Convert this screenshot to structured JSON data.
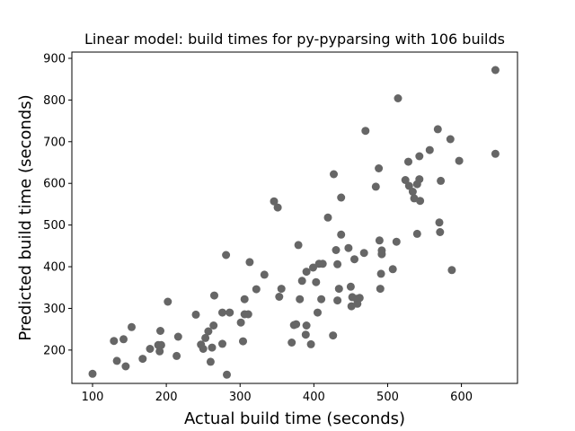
{
  "chart_data": {
    "type": "scatter",
    "title": "Linear model: build times for py-pyparsing with 106 builds",
    "xlabel": "Actual build time (seconds)",
    "ylabel": "Predicted build time (seconds)",
    "xlim": [
      72,
      676
    ],
    "ylim": [
      120,
      915
    ],
    "xticks": [
      100,
      200,
      300,
      400,
      500,
      600
    ],
    "yticks": [
      200,
      300,
      400,
      500,
      600,
      700,
      800,
      900
    ],
    "grid": false,
    "marker_color": "#666666",
    "series": [
      {
        "points": [
          [
            100,
            143
          ],
          [
            129,
            222
          ],
          [
            133,
            174
          ],
          [
            142,
            226
          ],
          [
            145,
            161
          ],
          [
            153,
            255
          ],
          [
            168,
            179
          ],
          [
            178,
            203
          ],
          [
            189,
            212
          ],
          [
            191,
            197
          ],
          [
            192,
            246
          ],
          [
            193,
            212
          ],
          [
            202,
            316
          ],
          [
            214,
            186
          ],
          [
            216,
            232
          ],
          [
            240,
            285
          ],
          [
            247,
            213
          ],
          [
            250,
            203
          ],
          [
            253,
            229
          ],
          [
            257,
            245
          ],
          [
            260,
            172
          ],
          [
            262,
            206
          ],
          [
            264,
            259
          ],
          [
            265,
            331
          ],
          [
            276,
            215
          ],
          [
            276,
            290
          ],
          [
            281,
            428
          ],
          [
            282,
            141
          ],
          [
            286,
            290
          ],
          [
            301,
            266
          ],
          [
            304,
            221
          ],
          [
            306,
            322
          ],
          [
            306,
            286
          ],
          [
            311,
            286
          ],
          [
            313,
            411
          ],
          [
            322,
            346
          ],
          [
            333,
            381
          ],
          [
            346,
            557
          ],
          [
            351,
            542
          ],
          [
            353,
            328
          ],
          [
            356,
            347
          ],
          [
            370,
            218
          ],
          [
            373,
            260
          ],
          [
            376,
            262
          ],
          [
            379,
            452
          ],
          [
            381,
            322
          ],
          [
            384,
            366
          ],
          [
            389,
            237
          ],
          [
            390,
            388
          ],
          [
            390,
            259
          ],
          [
            396,
            214
          ],
          [
            399,
            398
          ],
          [
            403,
            363
          ],
          [
            405,
            290
          ],
          [
            407,
            407
          ],
          [
            410,
            322
          ],
          [
            412,
            407
          ],
          [
            419,
            518
          ],
          [
            426,
            235
          ],
          [
            427,
            622
          ],
          [
            430,
            440
          ],
          [
            432,
            319
          ],
          [
            432,
            406
          ],
          [
            434,
            347
          ],
          [
            437,
            566
          ],
          [
            437,
            477
          ],
          [
            447,
            445
          ],
          [
            450,
            352
          ],
          [
            451,
            305
          ],
          [
            452,
            327
          ],
          [
            455,
            418
          ],
          [
            458,
            323
          ],
          [
            459,
            311
          ],
          [
            462,
            325
          ],
          [
            468,
            433
          ],
          [
            470,
            726
          ],
          [
            484,
            592
          ],
          [
            488,
            636
          ],
          [
            489,
            463
          ],
          [
            490,
            347
          ],
          [
            491,
            383
          ],
          [
            492,
            430
          ],
          [
            492,
            439
          ],
          [
            507,
            394
          ],
          [
            512,
            460
          ],
          [
            514,
            804
          ],
          [
            524,
            608
          ],
          [
            528,
            652
          ],
          [
            529,
            594
          ],
          [
            534,
            580
          ],
          [
            536,
            564
          ],
          [
            540,
            479
          ],
          [
            540,
            598
          ],
          [
            543,
            665
          ],
          [
            543,
            610
          ],
          [
            544,
            558
          ],
          [
            557,
            680
          ],
          [
            568,
            730
          ],
          [
            570,
            506
          ],
          [
            571,
            483
          ],
          [
            572,
            606
          ],
          [
            585,
            706
          ],
          [
            587,
            392
          ],
          [
            597,
            654
          ],
          [
            646,
            872
          ],
          [
            646,
            671
          ]
        ]
      }
    ]
  }
}
